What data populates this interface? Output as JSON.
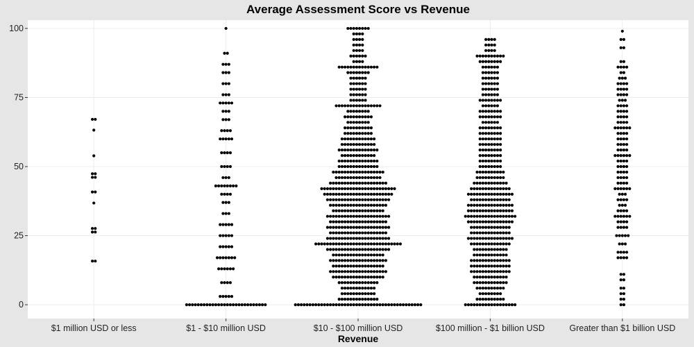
{
  "chart_data": {
    "type": "scatter",
    "subtype": "beeswarm",
    "title": "Average Assessment Score vs Revenue",
    "xlabel": "Revenue",
    "ylabel": "",
    "categories": [
      "$1 million USD or less",
      "$1 - $10 million USD",
      "$10 - $100 million USD",
      "$100 million - $1 billion USD",
      "Greater than $1 billion USD"
    ],
    "ylim": [
      -5,
      103
    ],
    "yticks": [
      0,
      25,
      50,
      75,
      100
    ],
    "grid": true,
    "legend": "none",
    "colors": {
      "background": "#e6e6e6",
      "panel": "#ffffff",
      "grid": "#ececec",
      "point": "#000000"
    },
    "series": [
      {
        "category": "$1 million USD or less",
        "values": [
          15.8,
          15.8,
          26.3,
          26.3,
          27.6,
          27.6,
          36.8,
          40.8,
          40.8,
          46.1,
          46.1,
          47.4,
          47.4,
          53.9,
          63.2,
          67.1,
          67.1
        ]
      },
      {
        "category": "$1 - $10 million USD",
        "profile": [
          [
            0,
            28
          ],
          [
            3,
            5
          ],
          [
            8,
            4
          ],
          [
            13,
            6
          ],
          [
            17,
            7
          ],
          [
            21,
            5
          ],
          [
            25,
            5
          ],
          [
            29,
            5
          ],
          [
            33,
            3
          ],
          [
            37,
            3
          ],
          [
            40,
            4
          ],
          [
            43,
            8
          ],
          [
            46,
            3
          ],
          [
            50,
            4
          ],
          [
            55,
            4
          ],
          [
            60,
            5
          ],
          [
            63,
            4
          ],
          [
            67,
            3
          ],
          [
            70,
            3
          ],
          [
            73,
            5
          ],
          [
            76,
            3
          ],
          [
            80,
            3
          ],
          [
            84,
            3
          ],
          [
            87,
            3
          ],
          [
            91,
            2
          ],
          [
            100,
            1
          ]
        ]
      },
      {
        "category": "$10 - $100 million USD",
        "profile": [
          [
            0,
            44
          ],
          [
            2,
            14
          ],
          [
            4,
            12
          ],
          [
            6,
            12
          ],
          [
            8,
            14
          ],
          [
            10,
            18
          ],
          [
            12,
            20
          ],
          [
            14,
            18
          ],
          [
            16,
            20
          ],
          [
            18,
            18
          ],
          [
            20,
            22
          ],
          [
            22,
            30
          ],
          [
            24,
            22
          ],
          [
            26,
            20
          ],
          [
            28,
            22
          ],
          [
            30,
            20
          ],
          [
            32,
            22
          ],
          [
            34,
            18
          ],
          [
            36,
            20
          ],
          [
            38,
            22
          ],
          [
            40,
            24
          ],
          [
            42,
            26
          ],
          [
            44,
            20
          ],
          [
            46,
            16
          ],
          [
            48,
            18
          ],
          [
            50,
            14
          ],
          [
            52,
            14
          ],
          [
            54,
            12
          ],
          [
            56,
            14
          ],
          [
            58,
            12
          ],
          [
            60,
            12
          ],
          [
            62,
            10
          ],
          [
            64,
            10
          ],
          [
            66,
            8
          ],
          [
            68,
            10
          ],
          [
            70,
            8
          ],
          [
            72,
            16
          ],
          [
            74,
            6
          ],
          [
            76,
            6
          ],
          [
            78,
            6
          ],
          [
            80,
            6
          ],
          [
            82,
            6
          ],
          [
            84,
            8
          ],
          [
            86,
            14
          ],
          [
            88,
            4
          ],
          [
            90,
            6
          ],
          [
            92,
            4
          ],
          [
            94,
            4
          ],
          [
            96,
            4
          ],
          [
            98,
            4
          ],
          [
            100,
            8
          ]
        ]
      },
      {
        "category": "$100 million - $1 billion USD",
        "profile": [
          [
            0,
            18
          ],
          [
            2,
            10
          ],
          [
            4,
            8
          ],
          [
            6,
            10
          ],
          [
            8,
            12
          ],
          [
            10,
            12
          ],
          [
            12,
            14
          ],
          [
            14,
            14
          ],
          [
            16,
            14
          ],
          [
            18,
            12
          ],
          [
            20,
            12
          ],
          [
            22,
            14
          ],
          [
            24,
            16
          ],
          [
            26,
            14
          ],
          [
            28,
            14
          ],
          [
            30,
            16
          ],
          [
            32,
            18
          ],
          [
            34,
            16
          ],
          [
            36,
            16
          ],
          [
            38,
            14
          ],
          [
            40,
            16
          ],
          [
            42,
            14
          ],
          [
            44,
            12
          ],
          [
            46,
            10
          ],
          [
            48,
            10
          ],
          [
            50,
            8
          ],
          [
            52,
            8
          ],
          [
            54,
            8
          ],
          [
            56,
            8
          ],
          [
            58,
            8
          ],
          [
            60,
            8
          ],
          [
            62,
            8
          ],
          [
            64,
            8
          ],
          [
            66,
            6
          ],
          [
            68,
            8
          ],
          [
            70,
            8
          ],
          [
            72,
            6
          ],
          [
            74,
            8
          ],
          [
            76,
            6
          ],
          [
            78,
            6
          ],
          [
            80,
            6
          ],
          [
            82,
            6
          ],
          [
            84,
            6
          ],
          [
            86,
            6
          ],
          [
            88,
            8
          ],
          [
            90,
            10
          ],
          [
            92,
            4
          ],
          [
            94,
            4
          ],
          [
            96,
            4
          ]
        ]
      },
      {
        "category": "Greater than $1 billion USD",
        "profile": [
          [
            0,
            2
          ],
          [
            2,
            2
          ],
          [
            4,
            2
          ],
          [
            6,
            2
          ],
          [
            9,
            2
          ],
          [
            11,
            2
          ],
          [
            17,
            4
          ],
          [
            19,
            4
          ],
          [
            22,
            3
          ],
          [
            25,
            5
          ],
          [
            28,
            4
          ],
          [
            30,
            4
          ],
          [
            32,
            6
          ],
          [
            34,
            4
          ],
          [
            36,
            3
          ],
          [
            38,
            4
          ],
          [
            40,
            3
          ],
          [
            42,
            6
          ],
          [
            44,
            4
          ],
          [
            46,
            4
          ],
          [
            48,
            4
          ],
          [
            50,
            4
          ],
          [
            52,
            4
          ],
          [
            54,
            6
          ],
          [
            56,
            4
          ],
          [
            58,
            4
          ],
          [
            60,
            4
          ],
          [
            62,
            4
          ],
          [
            64,
            6
          ],
          [
            66,
            4
          ],
          [
            68,
            4
          ],
          [
            70,
            4
          ],
          [
            72,
            4
          ],
          [
            74,
            3
          ],
          [
            76,
            4
          ],
          [
            78,
            4
          ],
          [
            80,
            4
          ],
          [
            82,
            3
          ],
          [
            84,
            2
          ],
          [
            86,
            4
          ],
          [
            88,
            2
          ],
          [
            93,
            2
          ],
          [
            96,
            2
          ],
          [
            99,
            1
          ]
        ]
      }
    ]
  }
}
